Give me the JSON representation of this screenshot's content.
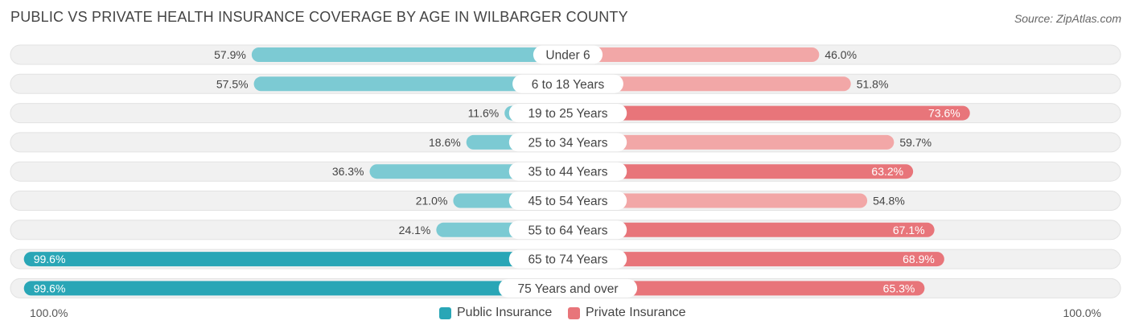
{
  "title": "PUBLIC VS PRIVATE HEALTH INSURANCE COVERAGE BY AGE IN WILBARGER COUNTY",
  "source": "Source: ZipAtlas.com",
  "axis": {
    "left_label": "100.0%",
    "right_label": "100.0%"
  },
  "legend": {
    "public_label": "Public Insurance",
    "private_label": "Private Insurance"
  },
  "colors": {
    "public_light": "#7ccad3",
    "public_dark": "#29a6b6",
    "private_light": "#f2a7a7",
    "private_dark": "#e8757a",
    "track": "#f1f1f1"
  },
  "chart_data": {
    "type": "bar",
    "orientation": "horizontal-diverging",
    "title": "PUBLIC VS PRIVATE HEALTH INSURANCE COVERAGE BY AGE IN WILBARGER COUNTY",
    "categories": [
      "Under 6",
      "6 to 18 Years",
      "19 to 25 Years",
      "25 to 34 Years",
      "35 to 44 Years",
      "45 to 54 Years",
      "55 to 64 Years",
      "65 to 74 Years",
      "75 Years and over"
    ],
    "series": [
      {
        "name": "Public Insurance",
        "values": [
          57.9,
          57.5,
          11.6,
          18.6,
          36.3,
          21.0,
          24.1,
          99.6,
          99.6
        ],
        "labels": [
          "57.9%",
          "57.5%",
          "11.6%",
          "18.6%",
          "36.3%",
          "21.0%",
          "24.1%",
          "99.6%",
          "99.6%"
        ]
      },
      {
        "name": "Private Insurance",
        "values": [
          46.0,
          51.8,
          73.6,
          59.7,
          63.2,
          54.8,
          67.1,
          68.9,
          65.3
        ],
        "labels": [
          "46.0%",
          "51.8%",
          "73.6%",
          "59.7%",
          "63.2%",
          "54.8%",
          "67.1%",
          "68.9%",
          "65.3%"
        ]
      }
    ],
    "xlim": [
      -100,
      100
    ]
  }
}
